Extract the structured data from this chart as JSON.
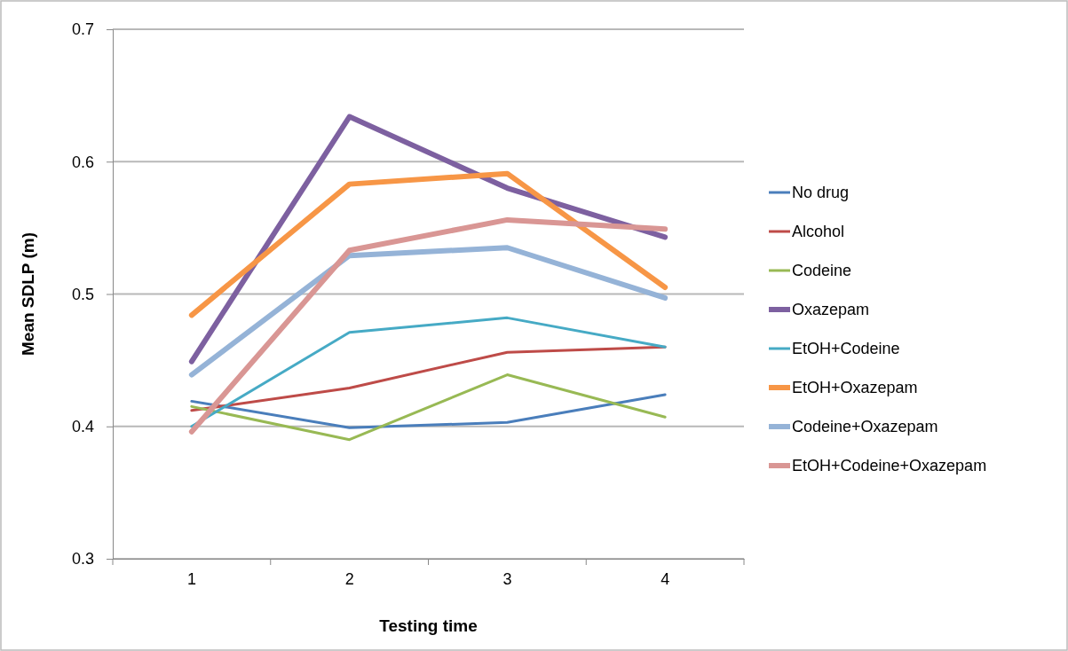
{
  "chart_data": {
    "type": "line",
    "xlabel": "Testing time",
    "ylabel": "Mean SDLP (m)",
    "categories": [
      "1",
      "2",
      "3",
      "4"
    ],
    "ylim": [
      0.3,
      0.7
    ],
    "yticks": [
      {
        "value": 0.3,
        "label": "0.3"
      },
      {
        "value": 0.4,
        "label": "0.4"
      },
      {
        "value": 0.5,
        "label": "0.5"
      },
      {
        "value": 0.6,
        "label": "0.6"
      },
      {
        "value": 0.7,
        "label": "0.7"
      }
    ],
    "grid": "y",
    "legend": "right",
    "marker": "none",
    "line_style": "solid",
    "series": [
      {
        "name": "No drug",
        "color": "#4a7ebb",
        "values": [
          0.419,
          0.399,
          0.403,
          0.424
        ]
      },
      {
        "name": "Alcohol",
        "color": "#be4b48",
        "values": [
          0.412,
          0.429,
          0.456,
          0.46
        ]
      },
      {
        "name": "Codeine",
        "color": "#98b954",
        "values": [
          0.415,
          0.39,
          0.439,
          0.407
        ]
      },
      {
        "name": "Oxazepam",
        "color": "#7d60a0",
        "values": [
          0.449,
          0.634,
          0.58,
          0.543
        ]
      },
      {
        "name": "EtOH+Codeine",
        "color": "#46aac5",
        "values": [
          0.4,
          0.471,
          0.482,
          0.46
        ]
      },
      {
        "name": "EtOH+Oxazepam",
        "color": "#f79646",
        "values": [
          0.484,
          0.583,
          0.591,
          0.505
        ]
      },
      {
        "name": "Codeine+Oxazepam",
        "color": "#95b3d7",
        "values": [
          0.439,
          0.529,
          0.535,
          0.497
        ]
      },
      {
        "name": "EtOH+Codeine+Oxazepam",
        "color": "#d99694",
        "values": [
          0.396,
          0.533,
          0.556,
          0.549
        ]
      }
    ]
  }
}
